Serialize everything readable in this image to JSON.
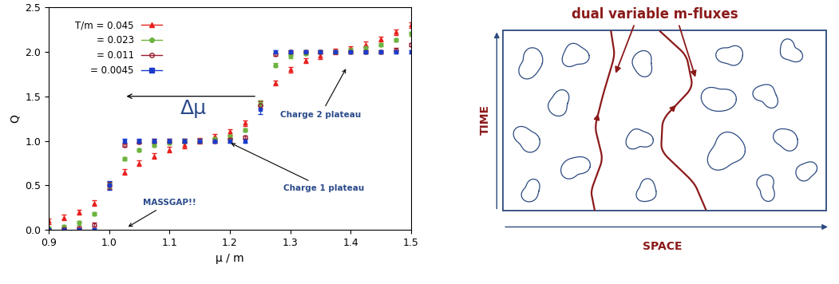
{
  "chart_data": {
    "type": "scatter",
    "xlabel": "μ / m",
    "ylabel": "Q",
    "xlim": [
      0.9,
      1.5
    ],
    "ylim": [
      0,
      2.5
    ],
    "xticks": [
      0.9,
      {
        "value": 1,
        "label": "1.0"
      },
      1.1,
      1.2,
      1.3,
      1.4,
      1.5
    ],
    "yticks": [
      {
        "value": 0,
        "label": "0.0"
      },
      0.5,
      {
        "value": 1,
        "label": "1.0"
      },
      1.5,
      {
        "value": 2,
        "label": "2.0"
      },
      2.5
    ],
    "legend": "upper left",
    "x": [
      0.9,
      0.925,
      0.95,
      0.975,
      1.0,
      1.025,
      1.05,
      1.075,
      1.1,
      1.125,
      1.15,
      1.175,
      1.2,
      1.225,
      1.25,
      1.275,
      1.3,
      1.325,
      1.35,
      1.375,
      1.4,
      1.425,
      1.45,
      1.475,
      1.5
    ],
    "series": [
      {
        "name": "T/m = 0.045",
        "color": "#e8211f",
        "marker": "triangle",
        "values": [
          0.1,
          0.14,
          0.2,
          0.3,
          0.5,
          0.65,
          0.75,
          0.83,
          0.9,
          0.95,
          1.0,
          1.05,
          1.1,
          1.2,
          1.42,
          1.65,
          1.8,
          1.9,
          1.95,
          2.0,
          2.03,
          2.08,
          2.14,
          2.22,
          2.3
        ],
        "errors": [
          0.03,
          0.03,
          0.03,
          0.03,
          0.03,
          0.03,
          0.03,
          0.03,
          0.03,
          0.03,
          0.03,
          0.03,
          0.03,
          0.03,
          0.03,
          0.03,
          0.03,
          0.03,
          0.03,
          0.03,
          0.03,
          0.03,
          0.03,
          0.03,
          0.03
        ]
      },
      {
        "name": "= 0.023",
        "color": "#6cb33f",
        "marker": "circle",
        "values": [
          0.02,
          0.04,
          0.08,
          0.18,
          0.5,
          0.8,
          0.9,
          0.95,
          0.98,
          1.0,
          1.0,
          1.02,
          1.05,
          1.12,
          1.42,
          1.85,
          1.95,
          1.98,
          2.0,
          2.0,
          2.02,
          2.04,
          2.08,
          2.13,
          2.2
        ],
        "errors": [
          0.02,
          0.02,
          0.02,
          0.02,
          0.03,
          0.02,
          0.02,
          0.02,
          0.02,
          0.02,
          0.02,
          0.02,
          0.02,
          0.02,
          0.03,
          0.02,
          0.02,
          0.02,
          0.02,
          0.02,
          0.02,
          0.02,
          0.02,
          0.02,
          0.02
        ]
      },
      {
        "name": "= 0.011",
        "color": "#9b1c31",
        "marker": "circle_open",
        "values": [
          0.0,
          0.01,
          0.02,
          0.06,
          0.5,
          0.95,
          0.99,
          1.0,
          1.0,
          1.0,
          1.0,
          1.0,
          1.01,
          1.04,
          1.4,
          1.97,
          2.0,
          2.0,
          2.0,
          2.0,
          2.0,
          2.0,
          2.0,
          2.02,
          2.08
        ],
        "errors": [
          0.02,
          0.02,
          0.02,
          0.02,
          0.04,
          0.02,
          0.02,
          0.02,
          0.02,
          0.02,
          0.02,
          0.02,
          0.02,
          0.02,
          0.04,
          0.02,
          0.02,
          0.02,
          0.02,
          0.02,
          0.02,
          0.02,
          0.02,
          0.02,
          0.02
        ]
      },
      {
        "name": "= 0.0045",
        "color": "#1a3ccc",
        "marker": "square",
        "values": [
          0.0,
          0.0,
          0.0,
          0.0,
          0.5,
          1.0,
          1.0,
          1.0,
          1.0,
          1.0,
          1.0,
          1.0,
          1.0,
          1.0,
          1.35,
          2.0,
          2.0,
          2.0,
          2.0,
          2.0,
          2.0,
          2.0,
          2.0,
          2.0,
          2.0
        ],
        "errors": [
          0.02,
          0.02,
          0.02,
          0.02,
          0.05,
          0.02,
          0.02,
          0.02,
          0.02,
          0.02,
          0.02,
          0.02,
          0.02,
          0.02,
          0.05,
          0.02,
          0.02,
          0.02,
          0.02,
          0.02,
          0.02,
          0.02,
          0.02,
          0.02,
          0.02
        ]
      }
    ],
    "annotations": [
      {
        "text": "Δμ",
        "xy": [
          1.025,
          1.5
        ],
        "xytext": [
          1.14,
          1.36
        ],
        "arrow_from": [
          1.245,
          1.5
        ]
      },
      {
        "text": "Charge 2 plateau",
        "xy": [
          1.393,
          1.82
        ],
        "xytext": [
          1.35,
          1.29
        ]
      },
      {
        "text": "Charge 1 plateau",
        "xy": [
          1.2,
          0.98
        ],
        "xytext": [
          1.356,
          0.47
        ]
      },
      {
        "text": "MASSGAP!!",
        "xy": [
          1.03,
          0.03
        ],
        "xytext": [
          1.1,
          0.31
        ]
      }
    ]
  },
  "diagram": {
    "label": "dual variable m-fluxes",
    "time_axis": "TIME",
    "space_axis": "SPACE"
  }
}
